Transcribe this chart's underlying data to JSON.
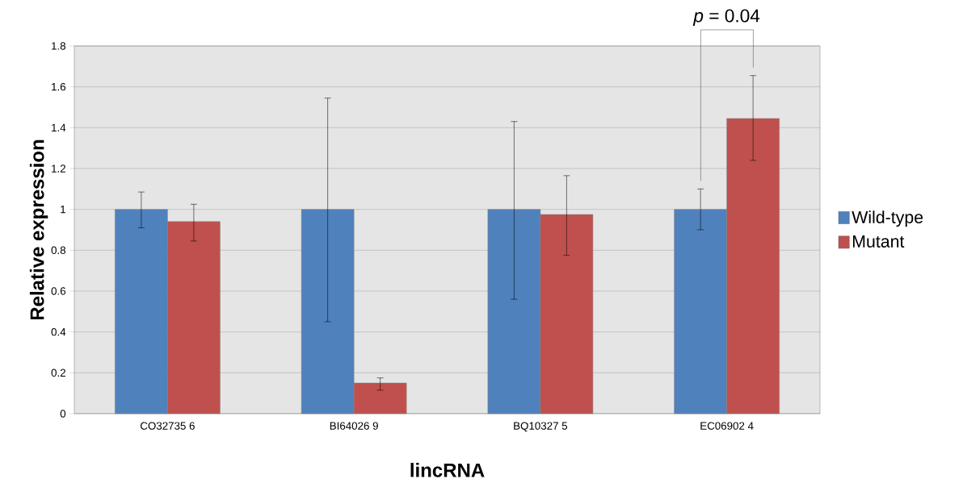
{
  "chart_data": {
    "type": "bar",
    "xlabel": "lincRNA",
    "ylabel": "Relative expression",
    "categories": [
      "CO32735 6",
      "BI64026 9",
      "BQ10327 5",
      "EC06902 4"
    ],
    "series": [
      {
        "name": "Wild-type",
        "color": "#4f81bd",
        "values": [
          1,
          1,
          1,
          1
        ],
        "errors": [
          [
            0.91,
            1.085
          ],
          [
            0.45,
            1.545
          ],
          [
            0.56,
            1.43
          ],
          [
            0.9,
            1.1
          ]
        ]
      },
      {
        "name": "Mutant",
        "color": "#c0504d",
        "values": [
          0.94,
          0.15,
          0.975,
          1.445
        ],
        "errors": [
          [
            0.845,
            1.025
          ],
          [
            0.115,
            0.175
          ],
          [
            0.775,
            1.165
          ],
          [
            1.24,
            1.655
          ]
        ]
      }
    ],
    "ylim": [
      0,
      1.8
    ],
    "yticks": [
      0,
      0.2,
      0.4,
      0.6,
      0.8,
      1,
      1.2,
      1.4,
      1.6,
      1.8
    ],
    "grid": "y",
    "legend": "right",
    "annotations": [
      "*p* = 0.04"
    ]
  }
}
